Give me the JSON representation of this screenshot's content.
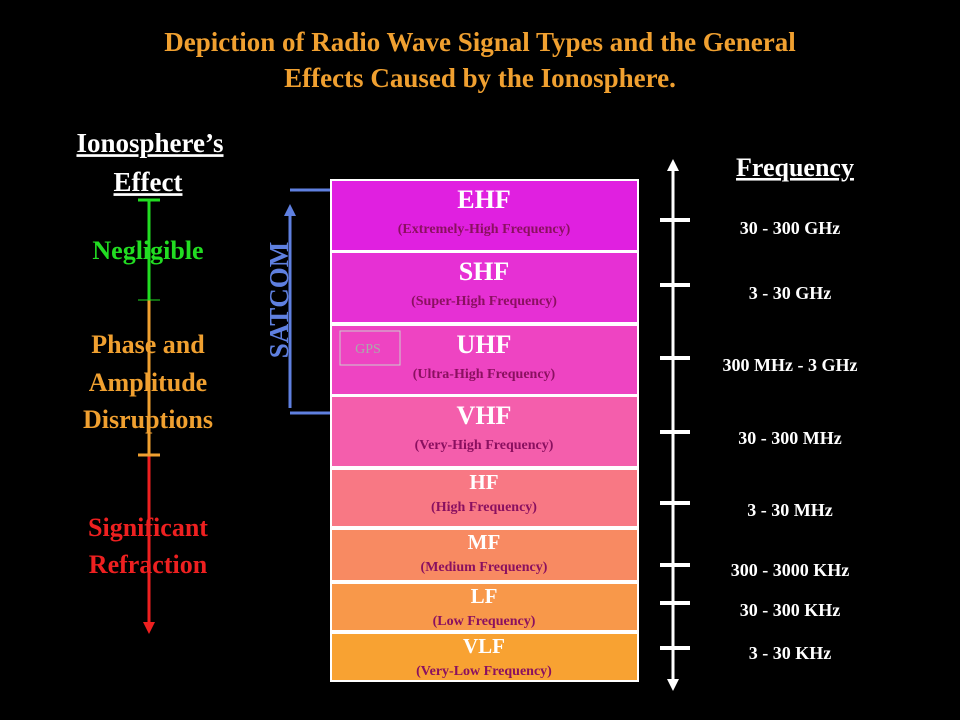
{
  "title": [
    "Depiction of Radio Wave Signal Types and the General",
    "Effects Caused by the Ionosphere."
  ],
  "effect_header": [
    "Ionosphere’s",
    "Effect"
  ],
  "effects": [
    {
      "lines": [
        "Negligible"
      ],
      "color": "#22dd22"
    },
    {
      "lines": [
        "Phase and",
        "Amplitude",
        "Disruptions"
      ],
      "color": "#f0a030"
    },
    {
      "lines": [
        "Significant",
        "Refraction"
      ],
      "color": "#ee2020"
    }
  ],
  "satcom": "SATCOM",
  "gps": "GPS",
  "bands": [
    {
      "name": "EHF",
      "full": "(Extremely-High Frequency)",
      "color": "#e020e0",
      "freq": "30 - 300 GHz"
    },
    {
      "name": "SHF",
      "full": "(Super-High Frequency)",
      "color": "#e630d4",
      "freq": "3 - 30 GHz"
    },
    {
      "name": "UHF",
      "full": "(Ultra-High Frequency)",
      "color": "#ee44c2",
      "freq": "300 MHz - 3 GHz"
    },
    {
      "name": "VHF",
      "full": "(Very-High Frequency)",
      "color": "#f45eac",
      "freq": "30 - 300 MHz"
    },
    {
      "name": "HF",
      "full": "(High Frequency)",
      "color": "#f87884",
      "freq": "3 - 30 MHz"
    },
    {
      "name": "MF",
      "full": "(Medium Frequency)",
      "color": "#f88a62",
      "freq": "300 - 3000 KHz"
    },
    {
      "name": "LF",
      "full": "(Low Frequency)",
      "color": "#f8984a",
      "freq": "30 - 300 KHz"
    },
    {
      "name": "VLF",
      "full": "(Very-Low Frequency)",
      "color": "#f8a232",
      "freq": "3 - 30 KHz"
    }
  ],
  "frequency_header": "Frequency"
}
